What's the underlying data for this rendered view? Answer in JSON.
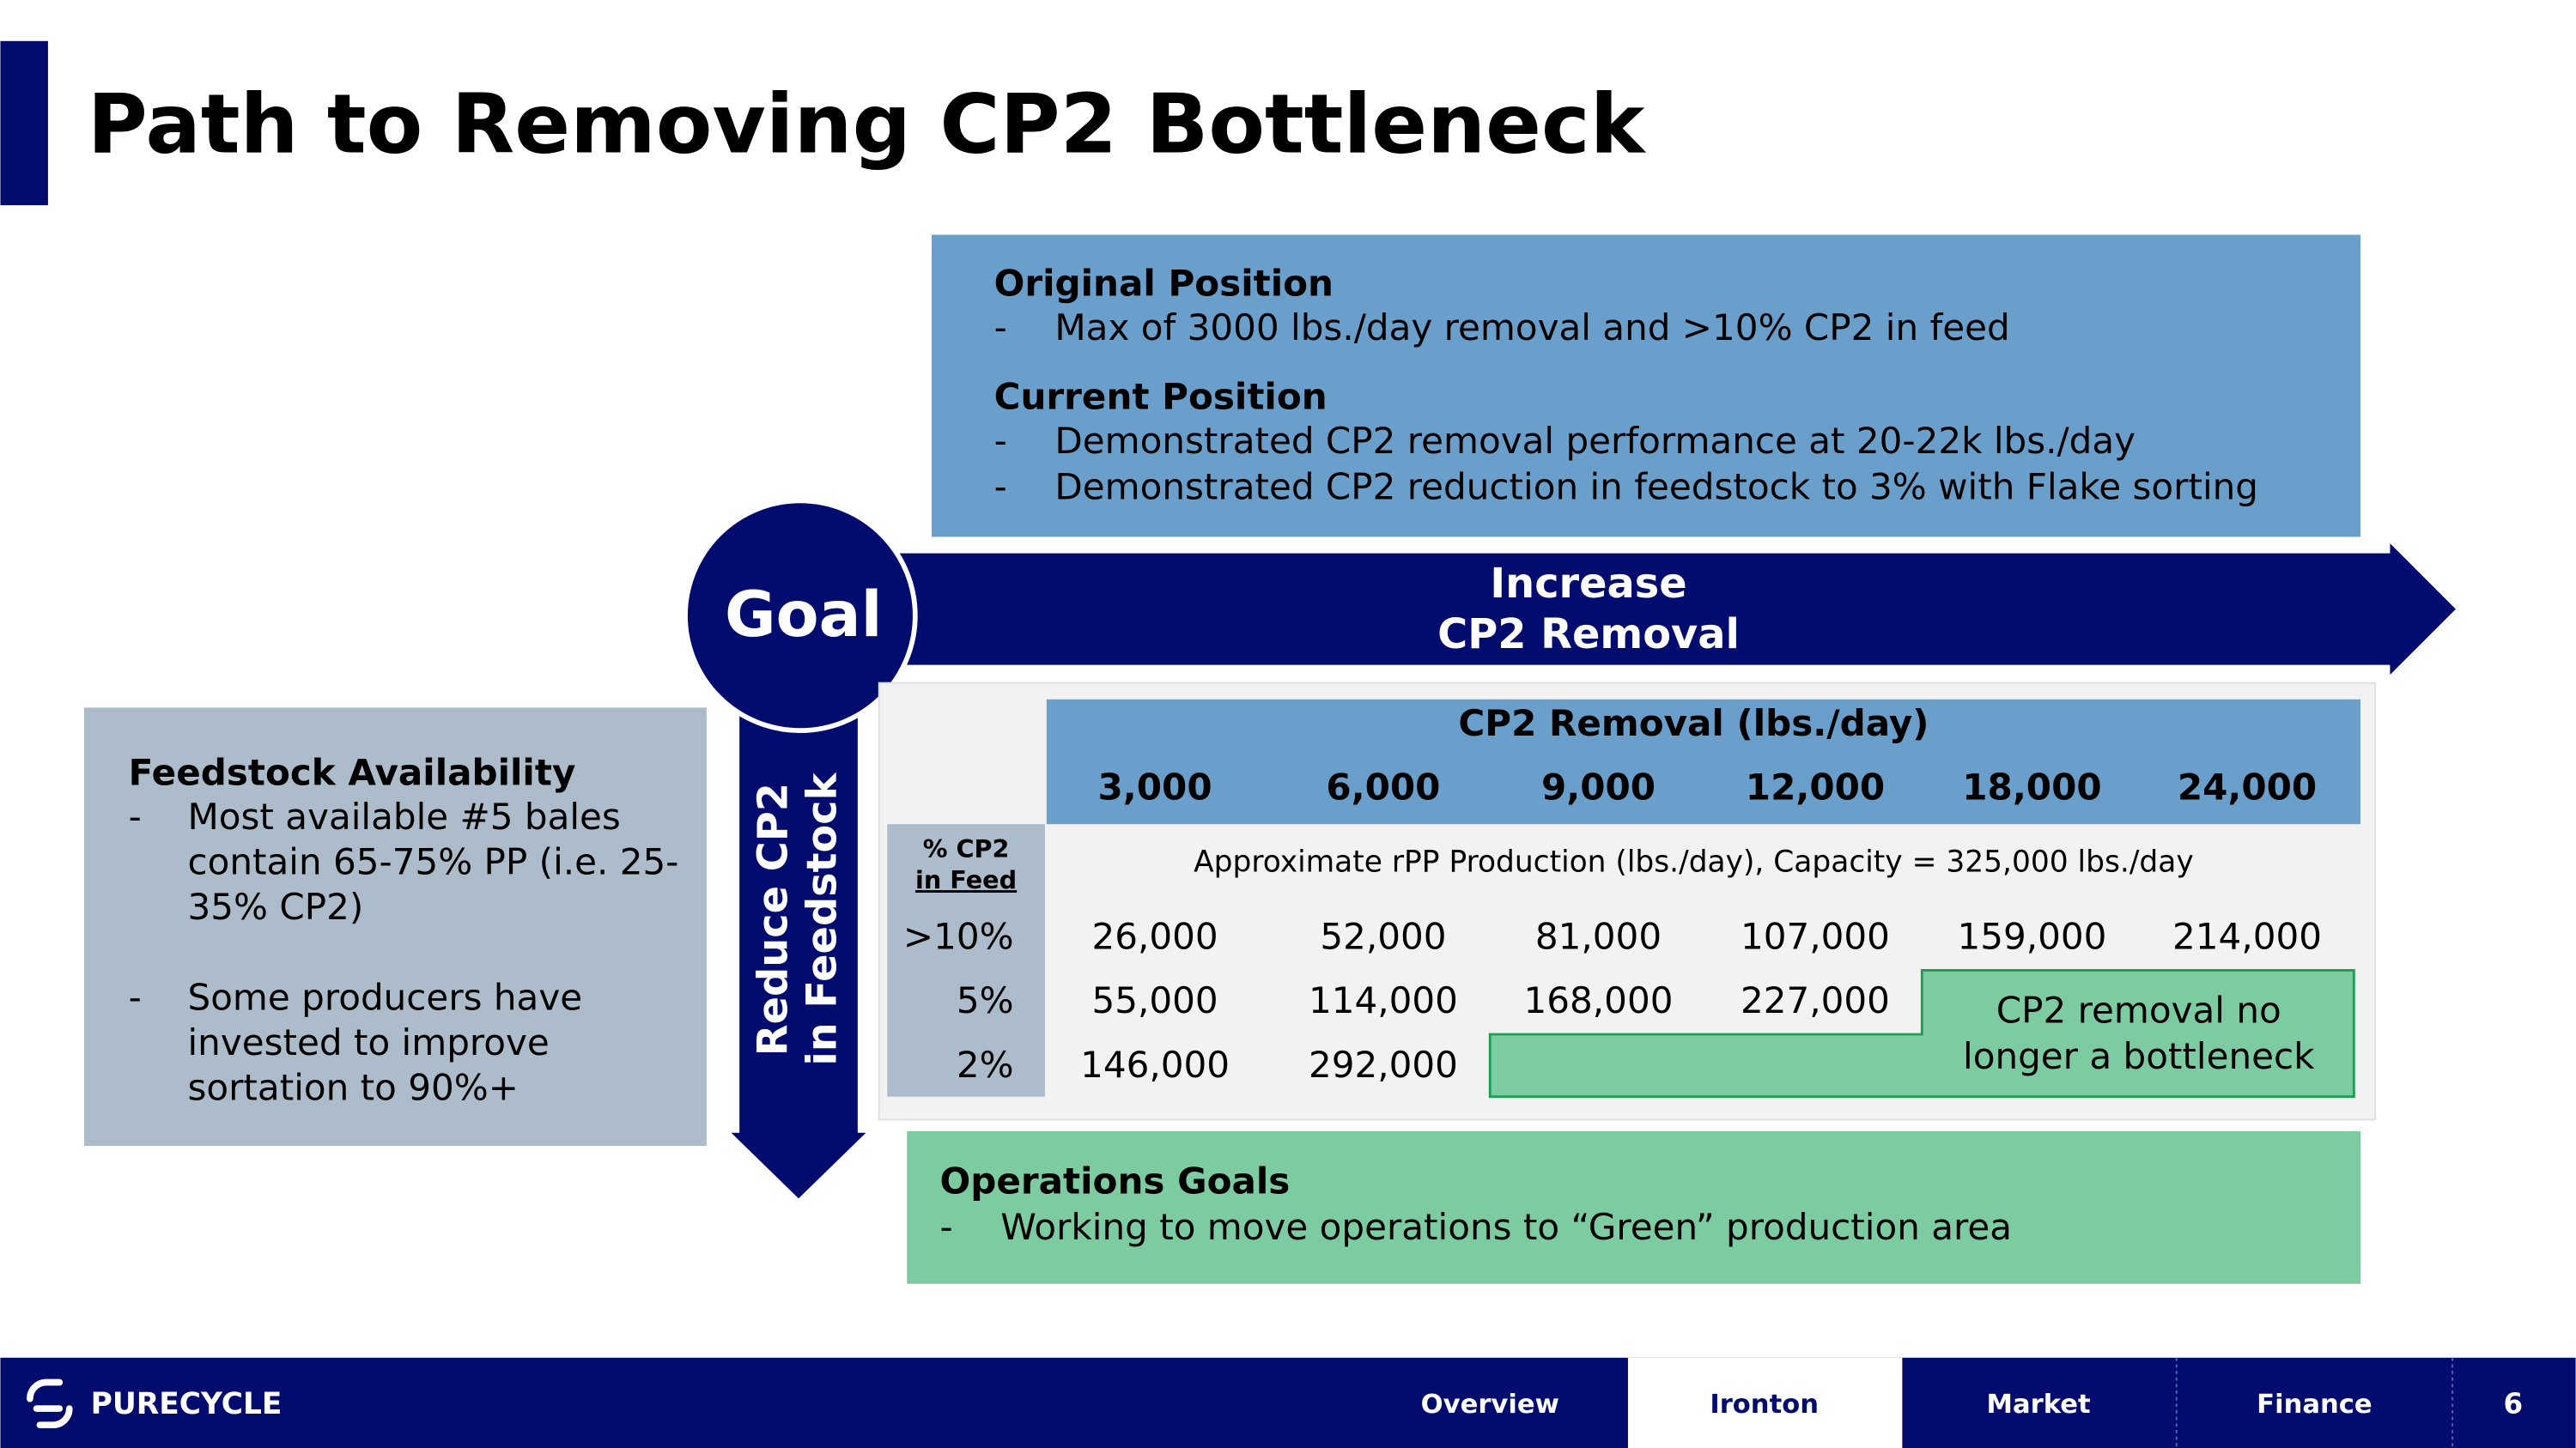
{
  "title": "Path to Removing CP2 Bottleneck",
  "positions": {
    "original": {
      "heading": "Original Position",
      "bullets": [
        "Max of 3000 lbs./day removal and >10% CP2 in feed"
      ]
    },
    "current": {
      "heading": "Current Position",
      "bullets": [
        "Demonstrated CP2 removal performance at 20-22k lbs./day",
        "Demonstrated CP2 reduction in feedstock to 3% with Flake sorting"
      ]
    }
  },
  "goal": "Goal",
  "increase_arrow": [
    "Increase",
    "CP2 Removal"
  ],
  "reduce_arrow": [
    "Reduce CP2",
    "in Feedstock"
  ],
  "feedstock": {
    "heading": "Feedstock Availability",
    "bullets": [
      [
        "Most available #5 bales",
        "contain 65-75% PP (i.e. 25-",
        "35% CP2)"
      ],
      [
        "Some producers have",
        "invested to improve",
        "sortation to 90%+"
      ]
    ]
  },
  "table": {
    "header": "CP2 Removal (lbs./day)",
    "columns": [
      "3,000",
      "6,000",
      "9,000",
      "12,000",
      "18,000",
      "24,000"
    ],
    "row_header": [
      "% CP2",
      "in Feed"
    ],
    "note": "Approximate rPP Production (lbs./day), Capacity = 325,000 lbs./day",
    "rows": [
      {
        "label": ">10%",
        "cells": [
          "26,000",
          "52,000",
          "81,000",
          "107,000",
          "159,000",
          "214,000"
        ]
      },
      {
        "label": "5%",
        "cells": [
          "55,000",
          "114,000",
          "168,000",
          "227,000"
        ]
      },
      {
        "label": "2%",
        "cells": [
          "146,000",
          "292,000"
        ]
      }
    ],
    "green_note": [
      "CP2 removal no",
      "longer a bottleneck"
    ]
  },
  "operations": {
    "heading": "Operations Goals",
    "bullets": [
      "Working to move operations to “Green” production area"
    ]
  },
  "footer": {
    "logo": "PURECYCLE",
    "nav": [
      "Overview",
      "Ironton",
      "Market",
      "Finance"
    ],
    "active": 1,
    "page": "6"
  }
}
